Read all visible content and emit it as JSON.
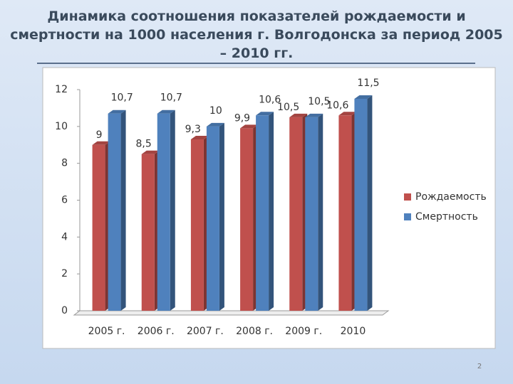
{
  "chart_data": {
    "type": "bar3d",
    "title": "Динамика соотношения показателей рождаемости и смертности на 1000 населения г. Волгодонска за период 2005 – 2010 гг.",
    "categories": [
      "2005 г.",
      "2006 г.",
      "2007 г.",
      "2008 г.",
      "2009 г.",
      "2010"
    ],
    "series": [
      {
        "name": "Рождаемость",
        "color": "#c0504d",
        "values": [
          9,
          8.5,
          9.3,
          9.9,
          10.5,
          10.6
        ],
        "value_labels": [
          "9",
          "8,5",
          "9,3",
          "9,9",
          "10,5",
          "10,6"
        ]
      },
      {
        "name": "Смертность",
        "color": "#4f81bd",
        "values": [
          10.7,
          10.7,
          10,
          10.6,
          10.5,
          11.5
        ],
        "value_labels": [
          "10,7",
          "10,7",
          "10",
          "10,6",
          "10,5",
          "11,5"
        ]
      }
    ],
    "ylim": [
      0,
      12
    ],
    "yticks": [
      0,
      2,
      4,
      6,
      8,
      10,
      12
    ],
    "grid": false,
    "legend": "right"
  },
  "page_number": "2"
}
